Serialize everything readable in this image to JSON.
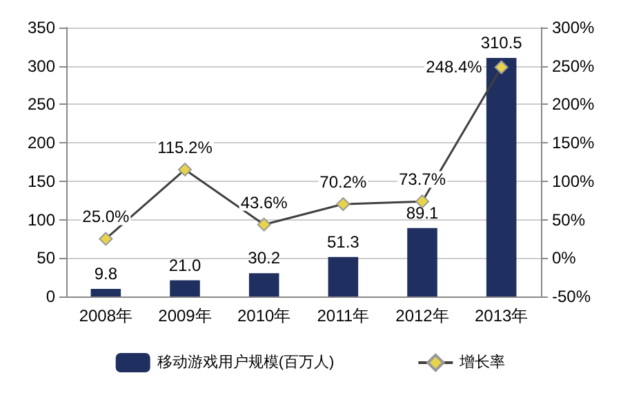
{
  "chart_data": {
    "type": "bar",
    "categories": [
      "2008年",
      "2009年",
      "2010年",
      "2011年",
      "2012年",
      "2013年"
    ],
    "series": [
      {
        "name": "移动游戏用户规模(百万人)",
        "color": "#1f2f5f",
        "values": [
          9.8,
          21.0,
          30.2,
          51.3,
          89.1,
          310.5
        ],
        "value_labels": [
          "9.8",
          "21.0",
          "30.2",
          "51.3",
          "89.1",
          "310.5"
        ]
      },
      {
        "name": "增长率",
        "type": "line",
        "axis": "y2",
        "color": "#e8d44a",
        "values": [
          25.0,
          115.2,
          43.6,
          70.2,
          73.7,
          248.4
        ],
        "value_labels": [
          "25.0%",
          "115.2%",
          "43.6%",
          "70.2%",
          "73.7%",
          "248.4%"
        ]
      }
    ],
    "ylim": [
      0,
      350
    ],
    "yticks": [
      0,
      50,
      100,
      150,
      200,
      250,
      300,
      350
    ],
    "y2lim": [
      -50,
      300
    ],
    "y2ticks": [
      {
        "value": -50,
        "label": "-50%"
      },
      {
        "value": 0,
        "label": "0%"
      },
      {
        "value": 50,
        "label": "50%"
      },
      {
        "value": 100,
        "label": "100%"
      },
      {
        "value": 150,
        "label": "150%"
      },
      {
        "value": 200,
        "label": "200%"
      },
      {
        "value": 250,
        "label": "250%"
      },
      {
        "value": 300,
        "label": "300%"
      }
    ],
    "grid": "y",
    "legend": "bottom",
    "marker": "diamond",
    "line_style": "solid"
  }
}
